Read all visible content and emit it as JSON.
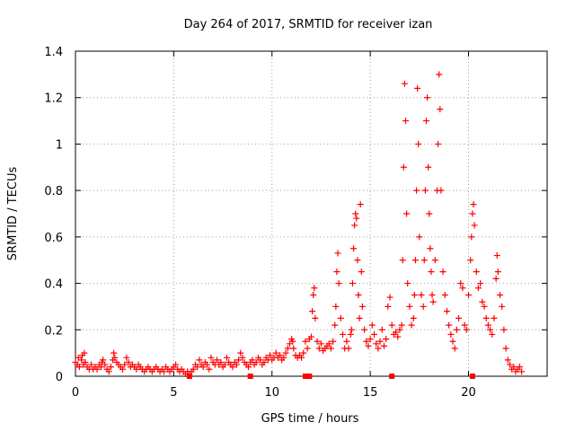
{
  "chart_data": {
    "type": "scatter",
    "title": "Day 264 of 2017, SRMTID for receiver izan",
    "xlabel": "GPS time / hours",
    "ylabel": "SRMTID / TECUs",
    "xlim": [
      0,
      24
    ],
    "ylim": [
      0,
      1.4
    ],
    "x_ticks": [
      0,
      5,
      10,
      15,
      20
    ],
    "x_tick_labels": [
      "0",
      "5",
      "10",
      "15",
      "20"
    ],
    "y_ticks": [
      0,
      0.2,
      0.4,
      0.6,
      0.8,
      1.0,
      1.2,
      1.4
    ],
    "y_tick_labels": [
      "0",
      "0.2",
      "0.4",
      "0.6",
      "0.8",
      "1",
      "1.2",
      "1.4"
    ],
    "grid": true,
    "marker": "+",
    "series_color": "#ff0000",
    "series": [
      {
        "name": "SRMTID",
        "points": [
          [
            0.0,
            0.06
          ],
          [
            0.1,
            0.05
          ],
          [
            0.15,
            0.08
          ],
          [
            0.2,
            0.04
          ],
          [
            0.3,
            0.07
          ],
          [
            0.35,
            0.09
          ],
          [
            0.4,
            0.05
          ],
          [
            0.45,
            0.1
          ],
          [
            0.5,
            0.06
          ],
          [
            0.6,
            0.04
          ],
          [
            0.7,
            0.03
          ],
          [
            0.8,
            0.05
          ],
          [
            0.9,
            0.03
          ],
          [
            1.0,
            0.04
          ],
          [
            1.1,
            0.03
          ],
          [
            1.2,
            0.05
          ],
          [
            1.3,
            0.04
          ],
          [
            1.35,
            0.06
          ],
          [
            1.4,
            0.07
          ],
          [
            1.5,
            0.05
          ],
          [
            1.6,
            0.03
          ],
          [
            1.7,
            0.02
          ],
          [
            1.8,
            0.04
          ],
          [
            1.9,
            0.07
          ],
          [
            1.95,
            0.1
          ],
          [
            2.0,
            0.08
          ],
          [
            2.1,
            0.06
          ],
          [
            2.2,
            0.05
          ],
          [
            2.3,
            0.04
          ],
          [
            2.4,
            0.03
          ],
          [
            2.5,
            0.05
          ],
          [
            2.6,
            0.08
          ],
          [
            2.7,
            0.06
          ],
          [
            2.8,
            0.04
          ],
          [
            2.9,
            0.05
          ],
          [
            3.0,
            0.04
          ],
          [
            3.1,
            0.03
          ],
          [
            3.2,
            0.05
          ],
          [
            3.3,
            0.04
          ],
          [
            3.4,
            0.03
          ],
          [
            3.5,
            0.02
          ],
          [
            3.6,
            0.03
          ],
          [
            3.7,
            0.04
          ],
          [
            3.8,
            0.03
          ],
          [
            3.9,
            0.02
          ],
          [
            4.0,
            0.03
          ],
          [
            4.1,
            0.04
          ],
          [
            4.2,
            0.03
          ],
          [
            4.3,
            0.02
          ],
          [
            4.4,
            0.03
          ],
          [
            4.5,
            0.02
          ],
          [
            4.6,
            0.04
          ],
          [
            4.7,
            0.03
          ],
          [
            4.8,
            0.02
          ],
          [
            4.9,
            0.03
          ],
          [
            5.0,
            0.04
          ],
          [
            5.1,
            0.05
          ],
          [
            5.2,
            0.03
          ],
          [
            5.3,
            0.02
          ],
          [
            5.4,
            0.03
          ],
          [
            5.5,
            0.02
          ],
          [
            5.6,
            0.01
          ],
          [
            5.7,
            0.02
          ],
          [
            5.8,
            0.01
          ],
          [
            5.9,
            0.02
          ],
          [
            6.0,
            0.03
          ],
          [
            6.1,
            0.05
          ],
          [
            6.2,
            0.04
          ],
          [
            6.3,
            0.07
          ],
          [
            6.4,
            0.05
          ],
          [
            6.5,
            0.04
          ],
          [
            6.6,
            0.06
          ],
          [
            6.7,
            0.05
          ],
          [
            6.8,
            0.03
          ],
          [
            6.9,
            0.08
          ],
          [
            7.0,
            0.06
          ],
          [
            7.1,
            0.05
          ],
          [
            7.2,
            0.07
          ],
          [
            7.3,
            0.05
          ],
          [
            7.4,
            0.06
          ],
          [
            7.5,
            0.04
          ],
          [
            7.6,
            0.05
          ],
          [
            7.7,
            0.08
          ],
          [
            7.8,
            0.06
          ],
          [
            7.9,
            0.05
          ],
          [
            8.0,
            0.04
          ],
          [
            8.1,
            0.06
          ],
          [
            8.2,
            0.05
          ],
          [
            8.3,
            0.07
          ],
          [
            8.4,
            0.1
          ],
          [
            8.5,
            0.08
          ],
          [
            8.6,
            0.06
          ],
          [
            8.7,
            0.05
          ],
          [
            8.8,
            0.04
          ],
          [
            8.9,
            0.06
          ],
          [
            9.0,
            0.07
          ],
          [
            9.1,
            0.05
          ],
          [
            9.2,
            0.06
          ],
          [
            9.3,
            0.08
          ],
          [
            9.4,
            0.07
          ],
          [
            9.5,
            0.05
          ],
          [
            9.6,
            0.06
          ],
          [
            9.7,
            0.08
          ],
          [
            9.8,
            0.07
          ],
          [
            9.9,
            0.09
          ],
          [
            10.0,
            0.07
          ],
          [
            10.1,
            0.08
          ],
          [
            10.2,
            0.1
          ],
          [
            10.3,
            0.08
          ],
          [
            10.4,
            0.09
          ],
          [
            10.5,
            0.07
          ],
          [
            10.6,
            0.08
          ],
          [
            10.7,
            0.1
          ],
          [
            10.8,
            0.12
          ],
          [
            10.9,
            0.14
          ],
          [
            11.0,
            0.16
          ],
          [
            11.05,
            0.15
          ],
          [
            11.1,
            0.12
          ],
          [
            11.2,
            0.09
          ],
          [
            11.3,
            0.08
          ],
          [
            11.4,
            0.09
          ],
          [
            11.5,
            0.08
          ],
          [
            11.6,
            0.1
          ],
          [
            11.7,
            0.15
          ],
          [
            11.8,
            0.12
          ],
          [
            11.9,
            0.16
          ],
          [
            12.0,
            0.17
          ],
          [
            12.05,
            0.28
          ],
          [
            12.1,
            0.35
          ],
          [
            12.15,
            0.38
          ],
          [
            12.2,
            0.25
          ],
          [
            12.3,
            0.15
          ],
          [
            12.4,
            0.12
          ],
          [
            12.5,
            0.14
          ],
          [
            12.6,
            0.11
          ],
          [
            12.7,
            0.12
          ],
          [
            12.8,
            0.13
          ],
          [
            12.9,
            0.14
          ],
          [
            13.0,
            0.12
          ],
          [
            13.1,
            0.15
          ],
          [
            13.2,
            0.22
          ],
          [
            13.25,
            0.3
          ],
          [
            13.3,
            0.45
          ],
          [
            13.35,
            0.53
          ],
          [
            13.4,
            0.4
          ],
          [
            13.5,
            0.25
          ],
          [
            13.6,
            0.18
          ],
          [
            13.7,
            0.12
          ],
          [
            13.8,
            0.15
          ],
          [
            13.9,
            0.12
          ],
          [
            14.0,
            0.18
          ],
          [
            14.05,
            0.2
          ],
          [
            14.1,
            0.4
          ],
          [
            14.15,
            0.55
          ],
          [
            14.2,
            0.65
          ],
          [
            14.25,
            0.7
          ],
          [
            14.3,
            0.68
          ],
          [
            14.35,
            0.5
          ],
          [
            14.4,
            0.35
          ],
          [
            14.45,
            0.25
          ],
          [
            14.5,
            0.74
          ],
          [
            14.55,
            0.45
          ],
          [
            14.6,
            0.3
          ],
          [
            14.7,
            0.2
          ],
          [
            14.8,
            0.15
          ],
          [
            14.9,
            0.13
          ],
          [
            15.0,
            0.16
          ],
          [
            15.1,
            0.22
          ],
          [
            15.2,
            0.18
          ],
          [
            15.3,
            0.14
          ],
          [
            15.4,
            0.12
          ],
          [
            15.5,
            0.15
          ],
          [
            15.6,
            0.2
          ],
          [
            15.7,
            0.13
          ],
          [
            15.8,
            0.16
          ],
          [
            15.9,
            0.3
          ],
          [
            16.0,
            0.34
          ],
          [
            16.1,
            0.22
          ],
          [
            16.2,
            0.18
          ],
          [
            16.3,
            0.19
          ],
          [
            16.4,
            0.17
          ],
          [
            16.5,
            0.2
          ],
          [
            16.6,
            0.22
          ],
          [
            16.65,
            0.5
          ],
          [
            16.7,
            0.9
          ],
          [
            16.75,
            1.26
          ],
          [
            16.8,
            1.1
          ],
          [
            16.85,
            0.7
          ],
          [
            16.9,
            0.4
          ],
          [
            17.0,
            0.3
          ],
          [
            17.1,
            0.22
          ],
          [
            17.2,
            0.25
          ],
          [
            17.25,
            0.35
          ],
          [
            17.3,
            0.5
          ],
          [
            17.35,
            0.8
          ],
          [
            17.4,
            1.24
          ],
          [
            17.45,
            1.0
          ],
          [
            17.5,
            0.6
          ],
          [
            17.6,
            0.35
          ],
          [
            17.7,
            0.3
          ],
          [
            17.75,
            0.5
          ],
          [
            17.8,
            0.8
          ],
          [
            17.85,
            1.1
          ],
          [
            17.9,
            1.2
          ],
          [
            17.95,
            0.9
          ],
          [
            18.0,
            0.7
          ],
          [
            18.05,
            0.55
          ],
          [
            18.1,
            0.45
          ],
          [
            18.15,
            0.35
          ],
          [
            18.2,
            0.32
          ],
          [
            18.3,
            0.5
          ],
          [
            18.4,
            0.8
          ],
          [
            18.45,
            1.0
          ],
          [
            18.5,
            1.3
          ],
          [
            18.55,
            1.15
          ],
          [
            18.6,
            0.8
          ],
          [
            18.7,
            0.45
          ],
          [
            18.8,
            0.35
          ],
          [
            18.9,
            0.28
          ],
          [
            19.0,
            0.22
          ],
          [
            19.1,
            0.18
          ],
          [
            19.2,
            0.15
          ],
          [
            19.3,
            0.12
          ],
          [
            19.4,
            0.2
          ],
          [
            19.5,
            0.25
          ],
          [
            19.6,
            0.4
          ],
          [
            19.7,
            0.38
          ],
          [
            19.8,
            0.22
          ],
          [
            19.9,
            0.2
          ],
          [
            20.0,
            0.35
          ],
          [
            20.1,
            0.5
          ],
          [
            20.15,
            0.6
          ],
          [
            20.2,
            0.7
          ],
          [
            20.25,
            0.74
          ],
          [
            20.3,
            0.65
          ],
          [
            20.4,
            0.45
          ],
          [
            20.5,
            0.38
          ],
          [
            20.6,
            0.4
          ],
          [
            20.7,
            0.32
          ],
          [
            20.8,
            0.3
          ],
          [
            20.9,
            0.25
          ],
          [
            21.0,
            0.22
          ],
          [
            21.1,
            0.2
          ],
          [
            21.2,
            0.18
          ],
          [
            21.3,
            0.25
          ],
          [
            21.4,
            0.42
          ],
          [
            21.45,
            0.52
          ],
          [
            21.5,
            0.45
          ],
          [
            21.6,
            0.35
          ],
          [
            21.7,
            0.3
          ],
          [
            21.8,
            0.2
          ],
          [
            21.9,
            0.12
          ],
          [
            22.0,
            0.07
          ],
          [
            22.1,
            0.05
          ],
          [
            22.2,
            0.03
          ],
          [
            22.3,
            0.04
          ],
          [
            22.4,
            0.02
          ],
          [
            22.5,
            0.03
          ],
          [
            22.6,
            0.04
          ],
          [
            22.7,
            0.02
          ]
        ]
      }
    ],
    "zero_markers_x": [
      5.8,
      8.9,
      11.7,
      11.9,
      16.1,
      20.2
    ]
  }
}
